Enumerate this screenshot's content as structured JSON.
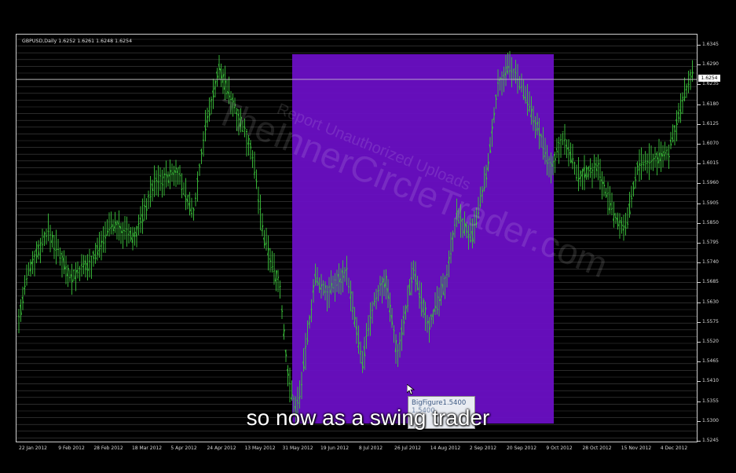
{
  "chart": {
    "symbol_info": "GBPUSD,Daily  1.6252 1.6261 1.6248 1.6254",
    "current_price": "1.6254",
    "price_labels": [
      "1.6345",
      "1.6290",
      "1.6235",
      "1.6180",
      "1.6125",
      "1.6070",
      "1.6015",
      "1.5960",
      "1.5905",
      "1.5850",
      "1.5795",
      "1.5740",
      "1.5685",
      "1.5630",
      "1.5575",
      "1.5520",
      "1.5465",
      "1.5410",
      "1.5355",
      "1.5300",
      "1.5245"
    ],
    "date_labels": [
      "22 Jan 2012",
      "9 Feb 2012",
      "28 Feb 2012",
      "18 Mar 2012",
      "5 Apr 2012",
      "24 Apr 2012",
      "13 May 2012",
      "31 May 2012",
      "19 Jun 2012",
      "8 Jul 2012",
      "26 Jul 2012",
      "14 Aug 2012",
      "2 Sep 2012",
      "20 Sep 2012",
      "9 Oct 2012",
      "28 Oct 2012",
      "15 Nov 2012",
      "4 Dec 2012"
    ],
    "watermark": "TheInnerCircleTrader.com",
    "watermark_small": "Report Unauthorized Uploads",
    "colors": {
      "candle": "#3bc43b",
      "highlight": "#6a0fc4",
      "grid": "#7a7a7a",
      "background": "#000000"
    }
  },
  "tooltip": {
    "line1": "BigFigure1.5400",
    "line2": "1.5400"
  },
  "caption": "so now as a swing trader"
}
